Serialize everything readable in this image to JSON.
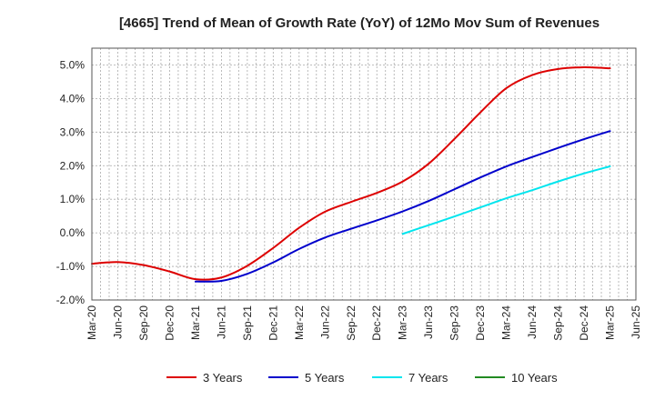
{
  "chart_data": {
    "type": "line",
    "title": "[4665]  Trend of Mean of Growth Rate (YoY) of 12Mo Mov Sum of Revenues",
    "xlabel": "",
    "ylabel": "",
    "ylim": [
      -2.0,
      5.5
    ],
    "y_ticks": [
      -2.0,
      -1.0,
      0.0,
      1.0,
      2.0,
      3.0,
      4.0,
      5.0
    ],
    "y_tick_labels": [
      "-2.0%",
      "-1.0%",
      "0.0%",
      "1.0%",
      "2.0%",
      "3.0%",
      "4.0%",
      "5.0%"
    ],
    "x_ticks": [
      0,
      3,
      6,
      9,
      12,
      15,
      18,
      21,
      24,
      27,
      30,
      33,
      36,
      39,
      42,
      45,
      48,
      51,
      54,
      57,
      60,
      63
    ],
    "x_tick_labels": [
      "Mar-20",
      "Jun-20",
      "Sep-20",
      "Dec-20",
      "Mar-21",
      "Jun-21",
      "Sep-21",
      "Dec-21",
      "Mar-22",
      "Jun-22",
      "Sep-22",
      "Dec-22",
      "Mar-23",
      "Jun-23",
      "Sep-23",
      "Dec-23",
      "Mar-24",
      "Jun-24",
      "Sep-24",
      "Dec-24",
      "Mar-25",
      "Jun-25"
    ],
    "xlim": [
      0,
      63
    ],
    "grid": true,
    "legend_position": "bottom",
    "series": [
      {
        "name": "3 Years",
        "color": "#dd0000",
        "x": [
          0,
          3,
          6,
          9,
          12,
          15,
          18,
          21,
          24,
          27,
          30,
          33,
          36,
          39,
          42,
          45,
          48,
          51,
          54,
          57,
          60
        ],
        "values": [
          -0.92,
          -0.87,
          -0.96,
          -1.15,
          -1.38,
          -1.33,
          -0.98,
          -0.45,
          0.15,
          0.63,
          0.92,
          1.19,
          1.53,
          2.06,
          2.8,
          3.59,
          4.31,
          4.7,
          4.88,
          4.93,
          4.9
        ]
      },
      {
        "name": "5 Years",
        "color": "#0000cc",
        "x": [
          12,
          15,
          18,
          21,
          24,
          27,
          30,
          33,
          36,
          39,
          42,
          45,
          48,
          51,
          54,
          57,
          60
        ],
        "values": [
          -1.45,
          -1.43,
          -1.22,
          -0.88,
          -0.48,
          -0.14,
          0.12,
          0.37,
          0.64,
          0.95,
          1.3,
          1.65,
          1.98,
          2.26,
          2.53,
          2.79,
          3.03
        ]
      },
      {
        "name": "7 Years",
        "color": "#00e5ee",
        "x": [
          36,
          39,
          42,
          45,
          48,
          51,
          54,
          57,
          60
        ],
        "values": [
          -0.03,
          0.23,
          0.49,
          0.76,
          1.03,
          1.27,
          1.53,
          1.77,
          1.98
        ]
      },
      {
        "name": "10 Years",
        "color": "#228B22",
        "x": [],
        "values": []
      }
    ]
  }
}
